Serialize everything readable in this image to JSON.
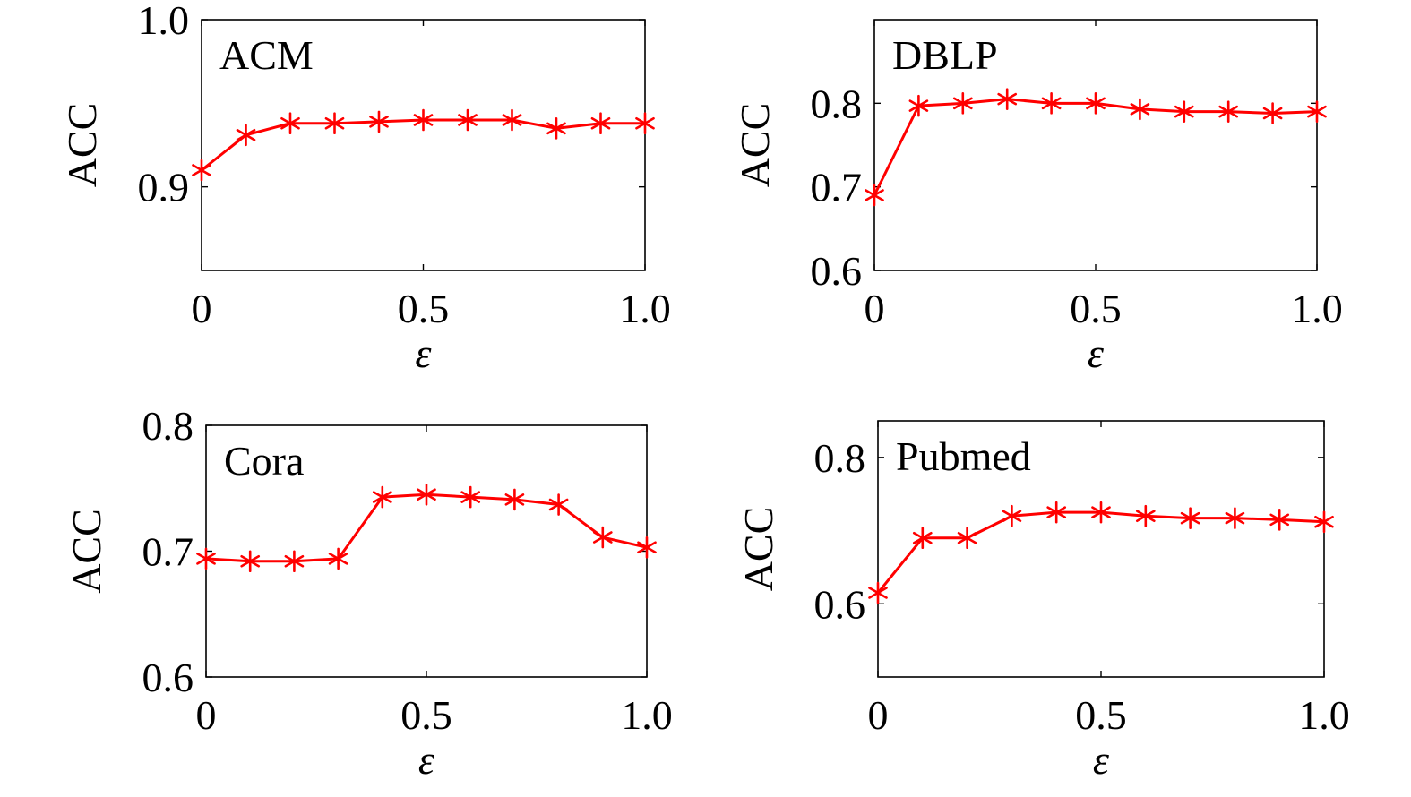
{
  "figure": {
    "accent_color": "#ff0000",
    "marker": "asterisk"
  },
  "chart_data": [
    {
      "type": "line",
      "title": "ACM",
      "xlabel": "ε",
      "ylabel": "ACC",
      "xlim": [
        0,
        1
      ],
      "ylim": [
        0.85,
        1.0
      ],
      "xticks": [
        0,
        0.5,
        1.0
      ],
      "xtick_labels": [
        "0",
        "0.5",
        "1.0"
      ],
      "yticks": [
        0.9,
        1.0
      ],
      "ytick_labels": [
        "0.9",
        "1.0"
      ],
      "x": [
        0,
        0.1,
        0.2,
        0.3,
        0.4,
        0.5,
        0.6,
        0.7,
        0.8,
        0.9,
        1.0
      ],
      "series": [
        {
          "values": [
            0.91,
            0.931,
            0.938,
            0.938,
            0.939,
            0.94,
            0.94,
            0.94,
            0.935,
            0.938,
            0.938
          ],
          "color": "#ff0000"
        }
      ]
    },
    {
      "type": "line",
      "title": "DBLP",
      "xlabel": "ε",
      "ylabel": "ACC",
      "xlim": [
        0,
        1
      ],
      "ylim": [
        0.6,
        0.9
      ],
      "xticks": [
        0,
        0.5,
        1.0
      ],
      "xtick_labels": [
        "0",
        "0.5",
        "1.0"
      ],
      "yticks": [
        0.6,
        0.7,
        0.8
      ],
      "ytick_labels": [
        "0.6",
        "0.7",
        "0.8"
      ],
      "x": [
        0,
        0.1,
        0.2,
        0.3,
        0.4,
        0.5,
        0.6,
        0.7,
        0.8,
        0.9,
        1.0
      ],
      "series": [
        {
          "values": [
            0.69,
            0.797,
            0.8,
            0.805,
            0.8,
            0.8,
            0.793,
            0.79,
            0.79,
            0.788,
            0.79
          ],
          "color": "#ff0000"
        }
      ]
    },
    {
      "type": "line",
      "title": "Cora",
      "xlabel": "ε",
      "ylabel": "ACC",
      "xlim": [
        0,
        1
      ],
      "ylim": [
        0.6,
        0.8
      ],
      "xticks": [
        0,
        0.5,
        1.0
      ],
      "xtick_labels": [
        "0",
        "0.5",
        "1.0"
      ],
      "yticks": [
        0.6,
        0.7,
        0.8
      ],
      "ytick_labels": [
        "0.6",
        "0.7",
        "0.8"
      ],
      "x": [
        0,
        0.1,
        0.2,
        0.3,
        0.4,
        0.5,
        0.6,
        0.7,
        0.8,
        0.9,
        1.0
      ],
      "series": [
        {
          "values": [
            0.694,
            0.692,
            0.692,
            0.694,
            0.743,
            0.745,
            0.743,
            0.741,
            0.737,
            0.711,
            0.703
          ],
          "color": "#ff0000"
        }
      ]
    },
    {
      "type": "line",
      "title": "Pubmed",
      "xlabel": "ε",
      "ylabel": "ACC",
      "xlim": [
        0,
        1
      ],
      "ylim": [
        0.5,
        0.85
      ],
      "xticks": [
        0,
        0.5,
        1.0
      ],
      "xtick_labels": [
        "0",
        "0.5",
        "1.0"
      ],
      "yticks": [
        0.6,
        0.8
      ],
      "ytick_labels": [
        "0.6",
        "0.8"
      ],
      "x": [
        0,
        0.1,
        0.2,
        0.3,
        0.4,
        0.5,
        0.6,
        0.7,
        0.8,
        0.9,
        1.0
      ],
      "series": [
        {
          "values": [
            0.615,
            0.69,
            0.69,
            0.72,
            0.725,
            0.725,
            0.72,
            0.717,
            0.717,
            0.715,
            0.712
          ],
          "color": "#ff0000"
        }
      ]
    }
  ]
}
